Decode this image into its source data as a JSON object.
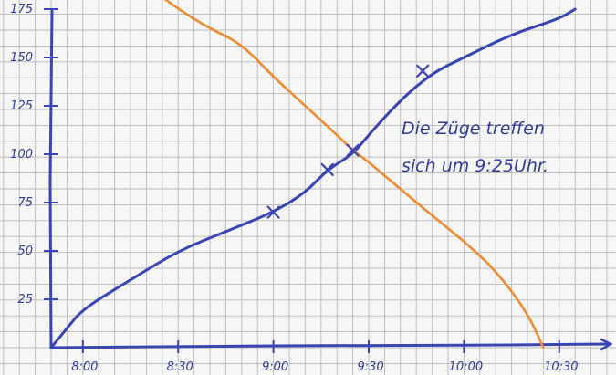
{
  "colors": {
    "background": "#f6f6f6",
    "grid": "#b9b9b9",
    "ink_blue": "#3a45b5",
    "orange": "#f08a2c"
  },
  "annotation": {
    "line1": "Die Züge treffen",
    "line2": "sich um   9:25Uhr."
  },
  "chart_data": {
    "type": "line",
    "title": "",
    "xlabel": "",
    "ylabel": "",
    "x_ticks": [
      "8:00",
      "8:30",
      "9:00",
      "9:30",
      "10:00",
      "10:30"
    ],
    "y_ticks": [
      "25",
      "50",
      "75",
      "100",
      "125",
      "150",
      "175"
    ],
    "xlim": [
      "7:50",
      "10:55"
    ],
    "ylim": [
      0,
      180
    ],
    "grid": true,
    "legend": "none",
    "series": [
      {
        "color": "#3a45b5",
        "x": [
          "7:50",
          "7:55",
          "8:00",
          "8:15",
          "8:30",
          "8:45",
          "9:00",
          "9:10",
          "9:17",
          "9:25",
          "9:30",
          "9:40",
          "9:50",
          "10:00",
          "10:15",
          "10:30",
          "10:35"
        ],
        "y": [
          0,
          10,
          20,
          35,
          50,
          60,
          70,
          80,
          92,
          100,
          110,
          128,
          142,
          150,
          162,
          170,
          175
        ],
        "markers_x": [
          "9:00",
          "9:17",
          "9:25",
          "9:47"
        ],
        "markers_y": [
          70,
          92,
          102,
          143
        ]
      },
      {
        "color": "#f08a2c",
        "x": [
          "8:26",
          "8:30",
          "8:40",
          "8:50",
          "9:00",
          "9:10",
          "9:20",
          "9:25",
          "9:30",
          "9:45",
          "10:00",
          "10:10",
          "10:20",
          "10:25"
        ],
        "y": [
          180,
          175,
          165,
          157,
          140,
          125,
          110,
          102,
          96,
          75,
          55,
          40,
          18,
          0
        ]
      }
    ]
  }
}
